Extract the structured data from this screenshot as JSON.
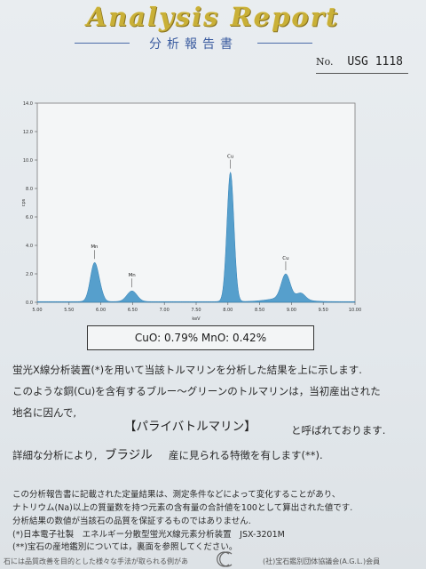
{
  "header": {
    "title": "Analysis Report",
    "subtitle": "分析報告書",
    "no_label": "No.",
    "no_value": "USG 1118"
  },
  "colors": {
    "gold": "#c9b037",
    "spectrum": "#3a8fc4",
    "navy": "#3b5ca0"
  },
  "chart_data": {
    "type": "line",
    "xlabel": "keV",
    "ylabel": "cps",
    "xlim": [
      5.0,
      10.0
    ],
    "ylim": [
      0,
      14.0
    ],
    "x_ticks": [
      "5.00",
      "5.50",
      "6.00",
      "6.50",
      "7.00",
      "7.50",
      "8.00",
      "8.50",
      "9.00",
      "9.50",
      "10.00"
    ],
    "y_ticks": [
      "0.0",
      "2.0",
      "4.0",
      "6.0",
      "8.0",
      "10.0",
      "12.0",
      "14.0"
    ],
    "peaks": [
      {
        "label": "Mn",
        "x": 5.9,
        "y": 2.7
      },
      {
        "label": "Mn",
        "x": 6.49,
        "y": 0.75
      },
      {
        "label": "Cu",
        "x": 8.04,
        "y": 9.1
      },
      {
        "label": "Cu",
        "x": 8.91,
        "y": 1.7
      }
    ],
    "baseline": 0.05
  },
  "result": "CuO: 0.79%   MnO: 0.42%",
  "body": {
    "line1": "蛍光X線分析装置(*)を用いて当該トルマリンを分析した結果を上に示します.",
    "line2": "このような銅(Cu)を含有するブルー～グリーンのトルマリンは，当初産出された",
    "line3": "地名に因んで,",
    "brand": "【パライバトルマリン】",
    "line4": "と呼ばれております.",
    "line5a": "詳細な分析により,",
    "brazil": "ブラジル",
    "line5b": "産に見られる特徴を有します(**)."
  },
  "notes": {
    "n1": "この分析報告書に記載された定量結果は、測定条件などによって変化することがあり、",
    "n2": "ナトリウム(Na)以上の質量数を持つ元素の含有量の合計値を100として算出された値です.",
    "n3": "分析結果の数値が当該石の品質を保証するものではありません.",
    "n4": "(*)日本電子社製　エネルギー分散型蛍光X線元素分析装置　JSX-3201M",
    "n5": "(**)宝石の産地鑑別については，裏面を参照してください。"
  },
  "footer": {
    "left": "石には品質改善を目的とした様々な手法が取られる例があ",
    "right": "(社)宝石鑑別団体協議会(A.G.L.)会員"
  }
}
